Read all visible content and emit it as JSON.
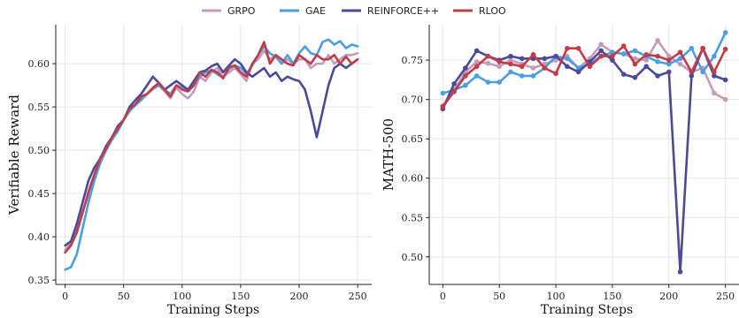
{
  "legend": {
    "items": [
      {
        "label": "GRPO",
        "color": "#c39bbd"
      },
      {
        "label": "GAE",
        "color": "#4a9fe2"
      },
      {
        "label": "REINFORCE++",
        "color": "#4a4a9c"
      },
      {
        "label": "RLOO",
        "color": "#c23b48"
      }
    ]
  },
  "chart_data": [
    {
      "type": "line",
      "title": "",
      "xlabel": "Training Steps",
      "ylabel": "Verifiable Reward",
      "xlim": [
        -8,
        262
      ],
      "ylim": [
        0.345,
        0.645
      ],
      "xticks": [
        0,
        50,
        100,
        150,
        200,
        250
      ],
      "yticks": [
        0.35,
        0.4,
        0.45,
        0.5,
        0.55,
        0.6
      ],
      "ytick_labels": [
        "0.35",
        "0.40",
        "0.45",
        "0.50",
        "0.55",
        "0.60"
      ],
      "grid": true,
      "series": [
        {
          "name": "GRPO",
          "color": "#c39bbd",
          "x": [
            0,
            5,
            10,
            15,
            20,
            25,
            30,
            35,
            40,
            45,
            50,
            55,
            60,
            65,
            70,
            75,
            80,
            85,
            90,
            95,
            100,
            105,
            110,
            115,
            120,
            125,
            130,
            135,
            140,
            145,
            150,
            155,
            160,
            165,
            170,
            175,
            180,
            185,
            190,
            195,
            200,
            205,
            210,
            215,
            220,
            225,
            230,
            235,
            240,
            245,
            250
          ],
          "y": [
            0.385,
            0.393,
            0.41,
            0.43,
            0.448,
            0.47,
            0.492,
            0.5,
            0.515,
            0.525,
            0.535,
            0.548,
            0.552,
            0.56,
            0.565,
            0.57,
            0.575,
            0.568,
            0.56,
            0.572,
            0.565,
            0.56,
            0.568,
            0.585,
            0.58,
            0.59,
            0.595,
            0.585,
            0.59,
            0.595,
            0.588,
            0.58,
            0.6,
            0.605,
            0.615,
            0.605,
            0.61,
            0.6,
            0.605,
            0.6,
            0.605,
            0.605,
            0.595,
            0.6,
            0.6,
            0.61,
            0.6,
            0.605,
            0.61,
            0.61,
            0.612
          ]
        },
        {
          "name": "GAE",
          "color": "#4a9fe2",
          "x": [
            0,
            5,
            10,
            15,
            20,
            25,
            30,
            35,
            40,
            45,
            50,
            55,
            60,
            65,
            70,
            75,
            80,
            85,
            90,
            95,
            100,
            105,
            110,
            115,
            120,
            125,
            130,
            135,
            140,
            145,
            150,
            155,
            160,
            165,
            170,
            175,
            180,
            185,
            190,
            195,
            200,
            205,
            210,
            215,
            220,
            225,
            230,
            235,
            240,
            245,
            250
          ],
          "y": [
            0.362,
            0.365,
            0.38,
            0.41,
            0.44,
            0.465,
            0.485,
            0.5,
            0.512,
            0.522,
            0.535,
            0.545,
            0.552,
            0.558,
            0.565,
            0.572,
            0.575,
            0.57,
            0.565,
            0.575,
            0.572,
            0.568,
            0.575,
            0.585,
            0.59,
            0.592,
            0.588,
            0.584,
            0.594,
            0.598,
            0.595,
            0.588,
            0.598,
            0.61,
            0.62,
            0.612,
            0.608,
            0.6,
            0.61,
            0.6,
            0.612,
            0.62,
            0.612,
            0.61,
            0.625,
            0.628,
            0.622,
            0.626,
            0.618,
            0.622,
            0.62
          ]
        },
        {
          "name": "REINFORCE++",
          "color": "#4a4a9c",
          "x": [
            0,
            5,
            10,
            15,
            20,
            25,
            30,
            35,
            40,
            45,
            50,
            55,
            60,
            65,
            70,
            75,
            80,
            85,
            90,
            95,
            100,
            105,
            110,
            115,
            120,
            125,
            130,
            135,
            140,
            145,
            150,
            155,
            160,
            165,
            170,
            175,
            180,
            185,
            190,
            195,
            200,
            205,
            210,
            215,
            220,
            225,
            230,
            235,
            240,
            245,
            250
          ],
          "y": [
            0.39,
            0.395,
            0.415,
            0.44,
            0.465,
            0.48,
            0.49,
            0.505,
            0.515,
            0.528,
            0.535,
            0.55,
            0.558,
            0.565,
            0.575,
            0.585,
            0.578,
            0.57,
            0.575,
            0.58,
            0.575,
            0.57,
            0.58,
            0.59,
            0.592,
            0.597,
            0.6,
            0.59,
            0.598,
            0.605,
            0.6,
            0.59,
            0.585,
            0.59,
            0.595,
            0.585,
            0.59,
            0.58,
            0.585,
            0.582,
            0.58,
            0.57,
            0.545,
            0.515,
            0.545,
            0.575,
            0.595,
            0.6,
            0.595,
            0.6,
            0.605
          ]
        },
        {
          "name": "RLOO",
          "color": "#c23b48",
          "x": [
            0,
            5,
            10,
            15,
            20,
            25,
            30,
            35,
            40,
            45,
            50,
            55,
            60,
            65,
            70,
            75,
            80,
            85,
            90,
            95,
            100,
            105,
            110,
            115,
            120,
            125,
            130,
            135,
            140,
            145,
            150,
            155,
            160,
            165,
            170,
            175,
            180,
            185,
            190,
            195,
            200,
            205,
            210,
            215,
            220,
            225,
            230,
            235,
            240,
            245,
            250
          ],
          "y": [
            0.382,
            0.39,
            0.405,
            0.428,
            0.452,
            0.472,
            0.49,
            0.502,
            0.515,
            0.525,
            0.535,
            0.548,
            0.553,
            0.562,
            0.565,
            0.572,
            0.578,
            0.57,
            0.562,
            0.575,
            0.57,
            0.568,
            0.575,
            0.59,
            0.585,
            0.593,
            0.59,
            0.583,
            0.596,
            0.598,
            0.59,
            0.585,
            0.6,
            0.61,
            0.625,
            0.6,
            0.61,
            0.605,
            0.6,
            0.598,
            0.61,
            0.605,
            0.6,
            0.61,
            0.605,
            0.605,
            0.61,
            0.6,
            0.608,
            0.6,
            0.605
          ]
        }
      ]
    },
    {
      "type": "line",
      "title": "",
      "xlabel": "Training Steps",
      "ylabel": "MATH-500",
      "xlim": [
        -12,
        262
      ],
      "ylim": [
        0.465,
        0.795
      ],
      "xticks": [
        0,
        50,
        100,
        150,
        200,
        250
      ],
      "yticks": [
        0.5,
        0.55,
        0.6,
        0.65,
        0.7,
        0.75
      ],
      "ytick_labels": [
        "0.50",
        "0.55",
        "0.60",
        "0.65",
        "0.70",
        "0.75"
      ],
      "grid": true,
      "series": [
        {
          "name": "GRPO",
          "color": "#c39bbd",
          "x": [
            0,
            10,
            20,
            30,
            40,
            50,
            60,
            70,
            80,
            90,
            100,
            110,
            120,
            130,
            140,
            150,
            160,
            170,
            180,
            190,
            200,
            210,
            220,
            230,
            240,
            250
          ],
          "y": [
            0.692,
            0.712,
            0.735,
            0.748,
            0.746,
            0.742,
            0.75,
            0.745,
            0.74,
            0.745,
            0.75,
            0.755,
            0.74,
            0.752,
            0.77,
            0.76,
            0.758,
            0.752,
            0.75,
            0.775,
            0.755,
            0.745,
            0.735,
            0.74,
            0.708,
            0.7
          ]
        },
        {
          "name": "GAE",
          "color": "#4a9fe2",
          "x": [
            0,
            10,
            20,
            30,
            40,
            50,
            60,
            70,
            80,
            90,
            100,
            110,
            120,
            130,
            140,
            150,
            160,
            170,
            180,
            190,
            200,
            210,
            220,
            230,
            240,
            250
          ],
          "y": [
            0.708,
            0.712,
            0.718,
            0.73,
            0.722,
            0.722,
            0.735,
            0.73,
            0.73,
            0.74,
            0.755,
            0.752,
            0.74,
            0.745,
            0.755,
            0.76,
            0.758,
            0.762,
            0.755,
            0.748,
            0.745,
            0.752,
            0.765,
            0.735,
            0.755,
            0.785
          ]
        },
        {
          "name": "REINFORCE++",
          "color": "#4a4a9c",
          "x": [
            0,
            10,
            20,
            30,
            40,
            50,
            60,
            70,
            80,
            90,
            100,
            110,
            120,
            130,
            140,
            150,
            160,
            170,
            180,
            190,
            200,
            210,
            220,
            230,
            240,
            250
          ],
          "y": [
            0.688,
            0.72,
            0.74,
            0.762,
            0.755,
            0.75,
            0.755,
            0.752,
            0.752,
            0.752,
            0.755,
            0.742,
            0.735,
            0.748,
            0.762,
            0.75,
            0.732,
            0.728,
            0.742,
            0.73,
            0.735,
            0.481,
            0.73,
            0.765,
            0.73,
            0.725
          ]
        },
        {
          "name": "RLOO",
          "color": "#c23b48",
          "x": [
            0,
            10,
            20,
            30,
            40,
            50,
            60,
            70,
            80,
            90,
            100,
            110,
            120,
            130,
            140,
            150,
            160,
            170,
            180,
            190,
            200,
            210,
            220,
            230,
            240,
            250
          ],
          "y": [
            0.691,
            0.71,
            0.73,
            0.742,
            0.755,
            0.748,
            0.745,
            0.742,
            0.757,
            0.74,
            0.733,
            0.765,
            0.765,
            0.742,
            0.755,
            0.755,
            0.768,
            0.745,
            0.757,
            0.755,
            0.75,
            0.76,
            0.735,
            0.765,
            0.735,
            0.764
          ]
        }
      ]
    }
  ]
}
